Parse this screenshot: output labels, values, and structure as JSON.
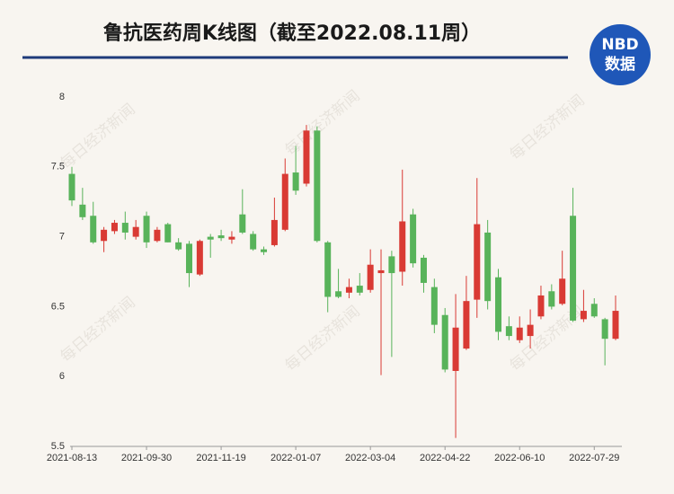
{
  "chart_data": {
    "type": "candlestick",
    "title": "鲁抗医药周K线图（截至2022.08.11周）",
    "logo": {
      "top": "NBD",
      "bottom": "数据"
    },
    "watermark": "每日经济新闻",
    "categories": [
      "2021-08-13",
      null,
      null,
      null,
      null,
      null,
      null,
      "2021-09-30",
      null,
      null,
      null,
      null,
      null,
      null,
      "2021-11-19",
      null,
      null,
      null,
      null,
      null,
      null,
      "2022-01-07",
      null,
      null,
      null,
      null,
      null,
      null,
      "2022-03-04",
      null,
      null,
      null,
      null,
      null,
      null,
      "2022-04-22",
      null,
      null,
      null,
      null,
      null,
      null,
      "2022-06-10",
      null,
      null,
      null,
      null,
      null,
      null,
      "2022-07-29",
      null,
      null
    ],
    "open": [
      7.45,
      7.23,
      7.15,
      6.97,
      7.04,
      7.1,
      7.0,
      7.15,
      6.97,
      7.09,
      6.96,
      6.95,
      6.73,
      7.0,
      7.01,
      6.98,
      7.16,
      7.02,
      6.91,
      6.94,
      7.05,
      7.46,
      7.38,
      7.76,
      6.96,
      6.61,
      6.6,
      6.65,
      6.62,
      6.74,
      6.86,
      6.75,
      7.16,
      6.85,
      6.64,
      6.44,
      6.04,
      6.2,
      6.55,
      7.03,
      6.71,
      6.36,
      6.26,
      6.29,
      6.43,
      6.61,
      6.52,
      7.15,
      6.41,
      6.52,
      6.41,
      6.27
    ],
    "high": [
      7.5,
      7.35,
      7.25,
      7.07,
      7.12,
      7.18,
      7.12,
      7.18,
      7.07,
      7.1,
      6.99,
      6.97,
      6.98,
      7.02,
      7.05,
      7.04,
      7.34,
      7.04,
      6.93,
      7.28,
      7.56,
      7.65,
      7.8,
      7.79,
      6.97,
      6.77,
      6.7,
      6.74,
      6.91,
      6.91,
      6.9,
      7.48,
      7.2,
      6.87,
      6.7,
      6.49,
      6.59,
      6.72,
      7.42,
      7.12,
      6.77,
      6.43,
      6.43,
      6.48,
      6.65,
      6.66,
      6.9,
      7.35,
      6.62,
      6.56,
      6.42,
      6.58
    ],
    "low": [
      7.22,
      7.12,
      6.95,
      6.89,
      7.02,
      6.98,
      6.98,
      6.92,
      6.96,
      6.96,
      6.9,
      6.64,
      6.72,
      6.85,
      6.97,
      6.95,
      7.02,
      6.9,
      6.87,
      6.93,
      7.04,
      7.3,
      7.36,
      6.96,
      6.46,
      6.56,
      6.56,
      6.58,
      6.6,
      6.01,
      6.14,
      6.65,
      6.78,
      6.6,
      6.31,
      6.03,
      5.56,
      6.19,
      6.42,
      6.48,
      6.26,
      6.26,
      6.24,
      6.2,
      6.41,
      6.48,
      6.51,
      6.39,
      6.39,
      6.42,
      6.08,
      6.26
    ],
    "close": [
      7.26,
      7.14,
      6.96,
      7.05,
      7.1,
      7.03,
      7.07,
      6.96,
      7.05,
      6.96,
      6.91,
      6.74,
      6.97,
      6.98,
      6.99,
      7.0,
      7.03,
      6.91,
      6.89,
      7.12,
      7.45,
      7.33,
      7.76,
      6.97,
      6.57,
      6.57,
      6.64,
      6.6,
      6.8,
      6.76,
      6.74,
      7.11,
      6.81,
      6.67,
      6.37,
      6.05,
      6.35,
      6.54,
      7.09,
      6.54,
      6.32,
      6.29,
      6.35,
      6.37,
      6.58,
      6.5,
      6.7,
      6.4,
      6.47,
      6.43,
      6.27,
      6.47
    ],
    "up_color": "#d93a34",
    "down_color": "#58b35a",
    "ylim": [
      5.5,
      8
    ],
    "yticks": [
      5.5,
      6,
      6.5,
      7,
      7.5,
      8
    ]
  }
}
